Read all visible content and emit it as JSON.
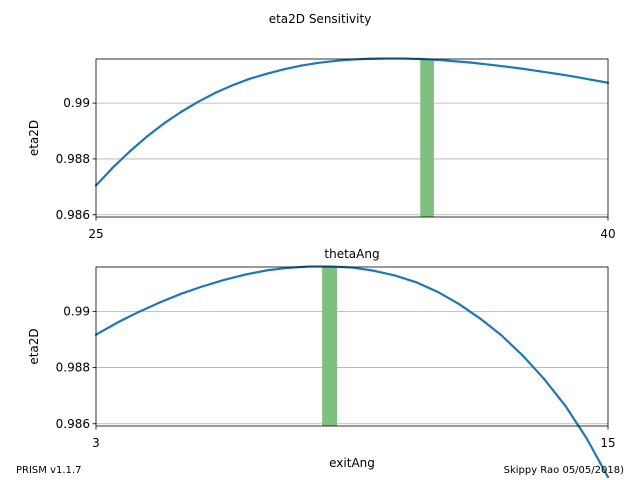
{
  "figure": {
    "title": "eta2D Sensitivity",
    "footer_left": "PRISM v1.1.7",
    "footer_right": "Skippy Rao 05/05/2018)"
  },
  "chart_data": [
    {
      "type": "line",
      "xlabel": "thetaAng",
      "ylabel": "eta2D",
      "xlim": [
        25,
        40
      ],
      "ylim": [
        0.98592,
        0.99158
      ],
      "xticks": [
        25,
        40
      ],
      "xtick_labels": [
        "25",
        "40"
      ],
      "yticks": [
        0.986,
        0.988,
        0.99
      ],
      "ytick_labels": [
        "0.986",
        "0.988",
        "0.99"
      ],
      "grid": "horizontal",
      "line_color": "#1f77b4",
      "highlight_color": "#7fbf7f",
      "highlight_x": [
        34.5,
        34.9
      ],
      "series": [
        {
          "x": [
            25,
            25.5,
            26,
            26.5,
            27,
            27.5,
            28,
            28.5,
            29,
            29.5,
            30,
            30.5,
            31,
            31.5,
            32,
            32.5,
            33,
            33.5,
            34,
            34.5,
            35,
            35.5,
            36,
            36.5,
            37,
            37.5,
            38,
            38.5,
            39,
            39.5,
            40
          ],
          "values": [
            0.98705,
            0.9877,
            0.98828,
            0.98881,
            0.98928,
            0.98969,
            0.99005,
            0.99037,
            0.99064,
            0.99087,
            0.99105,
            0.99121,
            0.99134,
            0.99144,
            0.99151,
            0.99156,
            0.99159,
            0.9916,
            0.9916,
            0.99158,
            0.99155,
            0.9915,
            0.99145,
            0.99138,
            0.99131,
            0.99123,
            0.99114,
            0.99105,
            0.99095,
            0.99084,
            0.99073
          ]
        }
      ]
    },
    {
      "type": "line",
      "xlabel": "exitAng",
      "ylabel": "eta2D",
      "xlim": [
        3,
        15
      ],
      "ylim": [
        0.98592,
        0.99158
      ],
      "xticks": [
        3,
        15
      ],
      "xtick_labels": [
        "3",
        "15"
      ],
      "yticks": [
        0.986,
        0.988,
        0.99
      ],
      "ytick_labels": [
        "0.986",
        "0.988",
        "0.99"
      ],
      "grid": "horizontal",
      "line_color": "#1f77b4",
      "highlight_color": "#7fbf7f",
      "highlight_x": [
        8.3,
        8.65
      ],
      "series": [
        {
          "x": [
            3,
            3.5,
            4,
            4.5,
            5,
            5.5,
            6,
            6.5,
            7,
            7.5,
            8,
            8.5,
            9,
            9.5,
            10,
            10.5,
            11,
            11.5,
            12,
            12.5,
            13,
            13.5,
            14,
            14.5,
            15
          ],
          "values": [
            0.98917,
            0.9896,
            0.98998,
            0.99032,
            0.99063,
            0.99089,
            0.99112,
            0.99131,
            0.99146,
            0.99155,
            0.9916,
            0.9916,
            0.99156,
            0.99145,
            0.99128,
            0.99104,
            0.9907,
            0.99027,
            0.98975,
            0.98915,
            0.98843,
            0.9876,
            0.98664,
            0.98548,
            0.9841
          ]
        }
      ]
    }
  ]
}
